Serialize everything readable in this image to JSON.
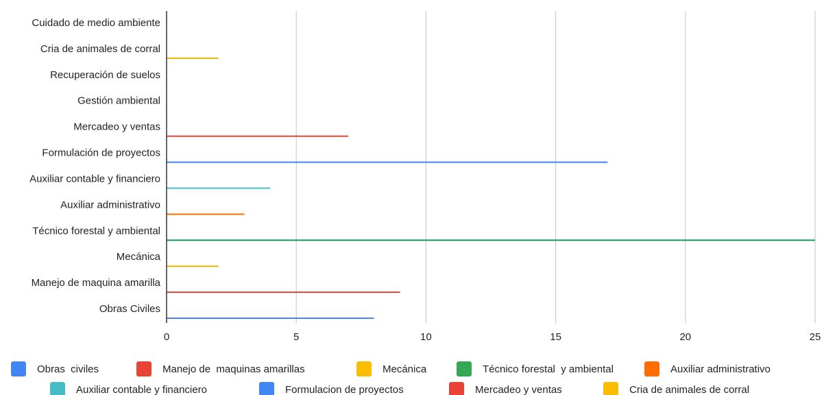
{
  "chart_data": {
    "type": "bar",
    "orientation": "horizontal",
    "title": "",
    "xlabel": "",
    "ylabel": "",
    "xlim": [
      0,
      25
    ],
    "xticks": [
      0,
      5,
      10,
      15,
      20,
      25
    ],
    "grid": true,
    "legend_position": "bottom",
    "categories": [
      "Cuidado de medio ambiente",
      "Cria de animales de corral",
      "Recuperación de suelos",
      "Gestión ambiental",
      "Mercadeo y ventas",
      "Formulación de proyectos",
      "Auxiliar contable y financiero",
      "Auxiliar administrativo",
      "Técnico forestal y ambiental",
      "Mecánica",
      "Manejo de maquina amarilla",
      "Obras Civiles"
    ],
    "bars": [
      {
        "category": "Cuidado de medio ambiente",
        "value": 0,
        "color": "#4285f4"
      },
      {
        "category": "Cria de animales de corral",
        "value": 2,
        "color": "#f4b400"
      },
      {
        "category": "Recuperación de suelos",
        "value": 0,
        "color": "#4285f4"
      },
      {
        "category": "Gestión ambiental",
        "value": 0,
        "color": "#4285f4"
      },
      {
        "category": "Mercadeo y ventas",
        "value": 7,
        "color": "#db4437"
      },
      {
        "category": "Formulación de proyectos",
        "value": 17,
        "color": "#4285f4"
      },
      {
        "category": "Auxiliar contable y financiero",
        "value": 4,
        "color": "#46bdc6"
      },
      {
        "category": "Auxiliar administrativo",
        "value": 3,
        "color": "#ff6d01"
      },
      {
        "category": "Técnico forestal y ambiental",
        "value": 25,
        "color": "#0f9d58"
      },
      {
        "category": "Mecánica",
        "value": 2,
        "color": "#f4b400"
      },
      {
        "category": "Manejo de maquina amarilla",
        "value": 9,
        "color": "#db4437"
      },
      {
        "category": "Obras Civiles",
        "value": 8,
        "color": "#4285f4"
      }
    ],
    "legend": [
      {
        "label": "Obras  civiles",
        "color": "#4285f4"
      },
      {
        "label": "Manejo de  maquinas amarillas",
        "color": "#ea4335"
      },
      {
        "label": "Mecánica",
        "color": "#fbbc04"
      },
      {
        "label": "Técnico forestal  y ambiental",
        "color": "#34a853"
      },
      {
        "label": "Auxiliar administrativo",
        "color": "#ff6d01"
      },
      {
        "label": "Auxiliar contable y financiero",
        "color": "#46bdc6"
      },
      {
        "label": "Formulacion de proyectos",
        "color": "#4285f4"
      },
      {
        "label": "Mercadeo y ventas",
        "color": "#ea4335"
      },
      {
        "label": "Cria de animales de corral",
        "color": "#fbbc04"
      }
    ]
  }
}
